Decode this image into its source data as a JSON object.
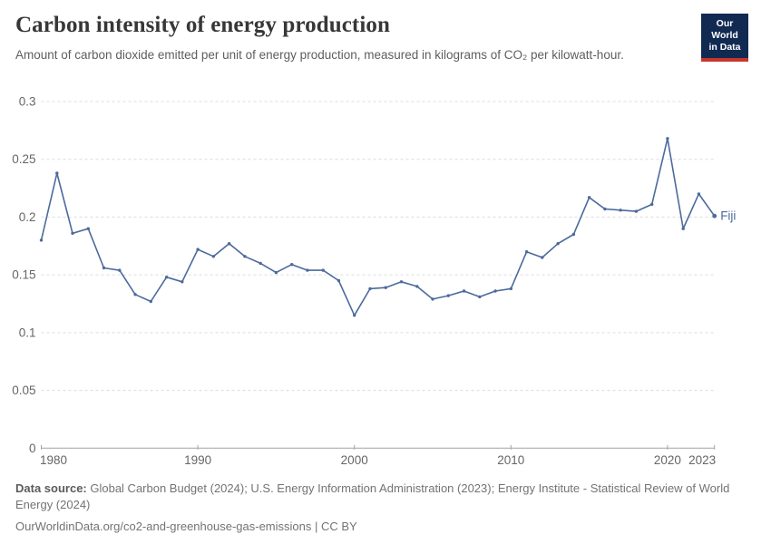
{
  "header": {
    "title": "Carbon intensity of energy production",
    "subtitle": "Amount of carbon dioxide emitted per unit of energy production, measured in kilograms of CO₂ per kilowatt-hour.",
    "logo_line1": "Our World",
    "logo_line2": "in Data"
  },
  "chart_data": {
    "type": "line",
    "title": "Carbon intensity of energy production",
    "xlabel": "",
    "ylabel": "kilograms of CO₂ per kilowatt-hour",
    "series": [
      {
        "name": "Fiji",
        "x": [
          1980,
          1981,
          1982,
          1983,
          1984,
          1985,
          1986,
          1987,
          1988,
          1989,
          1990,
          1991,
          1992,
          1993,
          1994,
          1995,
          1996,
          1997,
          1998,
          1999,
          2000,
          2001,
          2002,
          2003,
          2004,
          2005,
          2006,
          2007,
          2008,
          2009,
          2010,
          2011,
          2012,
          2013,
          2014,
          2015,
          2016,
          2017,
          2018,
          2019,
          2020,
          2021,
          2022,
          2023
        ],
        "values": [
          0.18,
          0.238,
          0.186,
          0.19,
          0.156,
          0.154,
          0.133,
          0.127,
          0.148,
          0.144,
          0.172,
          0.166,
          0.177,
          0.166,
          0.16,
          0.152,
          0.159,
          0.154,
          0.154,
          0.145,
          0.115,
          0.138,
          0.139,
          0.144,
          0.14,
          0.129,
          0.132,
          0.136,
          0.131,
          0.136,
          0.138,
          0.17,
          0.165,
          0.177,
          0.185,
          0.217,
          0.207,
          0.206,
          0.205,
          0.211,
          0.268,
          0.19,
          0.22,
          0.201
        ]
      }
    ],
    "xlim": [
      1980,
      2023
    ],
    "ylim": [
      0,
      0.3
    ],
    "yticks": [
      0,
      0.05,
      0.1,
      0.15,
      0.2,
      0.25,
      0.3
    ],
    "xticks": [
      1980,
      1990,
      2000,
      2010,
      2020,
      2023
    ],
    "grid": "horizontal-dashed",
    "legend_position": "end-of-line-label",
    "series_end_label": "Fiji",
    "line_color": "#4C6A9C",
    "grid_color": "#dcdcdc",
    "axis_color": "#a3a3a3",
    "tick_label_color": "#666666"
  },
  "footer": {
    "datasource_label": "Data source:",
    "datasource_text": " Global Carbon Budget (2024); U.S. Energy Information Administration (2023); Energy Institute - Statistical Review of World Energy (2024)",
    "license_text": "OurWorldinData.org/co2-and-greenhouse-gas-emissions | CC BY"
  }
}
